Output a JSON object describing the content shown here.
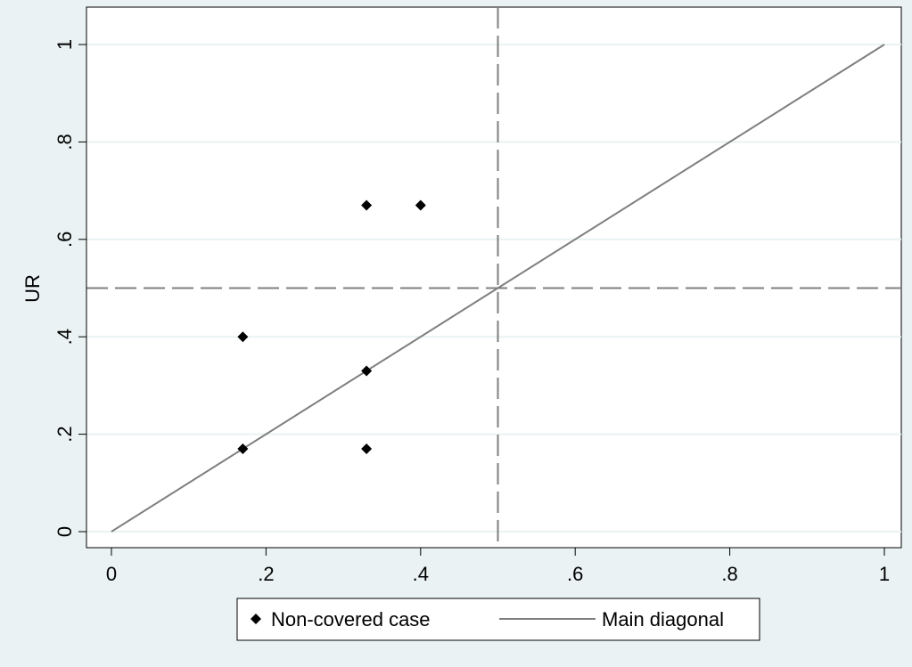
{
  "chart_data": {
    "type": "scatter",
    "title": "",
    "xlabel": "",
    "ylabel": "UR",
    "xlim": [
      0,
      1
    ],
    "ylim": [
      0,
      1
    ],
    "xticks": [
      {
        "value": 0,
        "label": "0"
      },
      {
        "value": 0.2,
        "label": ".2"
      },
      {
        "value": 0.4,
        "label": ".4"
      },
      {
        "value": 0.6,
        "label": ".6"
      },
      {
        "value": 0.8,
        "label": ".8"
      },
      {
        "value": 1,
        "label": "1"
      }
    ],
    "yticks": [
      {
        "value": 0,
        "label": "0"
      },
      {
        "value": 0.2,
        "label": ".2"
      },
      {
        "value": 0.4,
        "label": ".4"
      },
      {
        "value": 0.6,
        "label": ".6"
      },
      {
        "value": 0.8,
        "label": ".8"
      },
      {
        "value": 1,
        "label": "1"
      }
    ],
    "grid": "horizontal",
    "series": [
      {
        "name": "Non-covered case",
        "marker": "diamond",
        "color": "#000000",
        "points": [
          {
            "x": 0.17,
            "y": 0.17
          },
          {
            "x": 0.17,
            "y": 0.4
          },
          {
            "x": 0.33,
            "y": 0.17
          },
          {
            "x": 0.33,
            "y": 0.33
          },
          {
            "x": 0.33,
            "y": 0.67
          },
          {
            "x": 0.4,
            "y": 0.67
          }
        ]
      },
      {
        "name": "Main diagonal",
        "style": "line",
        "color": "#7f7f7f",
        "points": [
          {
            "x": 0,
            "y": 0
          },
          {
            "x": 1,
            "y": 1
          }
        ]
      }
    ],
    "reference_lines": [
      {
        "axis": "x",
        "value": 0.5,
        "style": "dashed",
        "color": "#7f7f7f"
      },
      {
        "axis": "y",
        "value": 0.5,
        "style": "dashed",
        "color": "#7f7f7f"
      }
    ],
    "legend": {
      "placement": "bottom",
      "entries": [
        {
          "label": "Non-covered case",
          "symbol": "diamond"
        },
        {
          "label": "Main diagonal",
          "symbol": "line"
        }
      ]
    }
  }
}
